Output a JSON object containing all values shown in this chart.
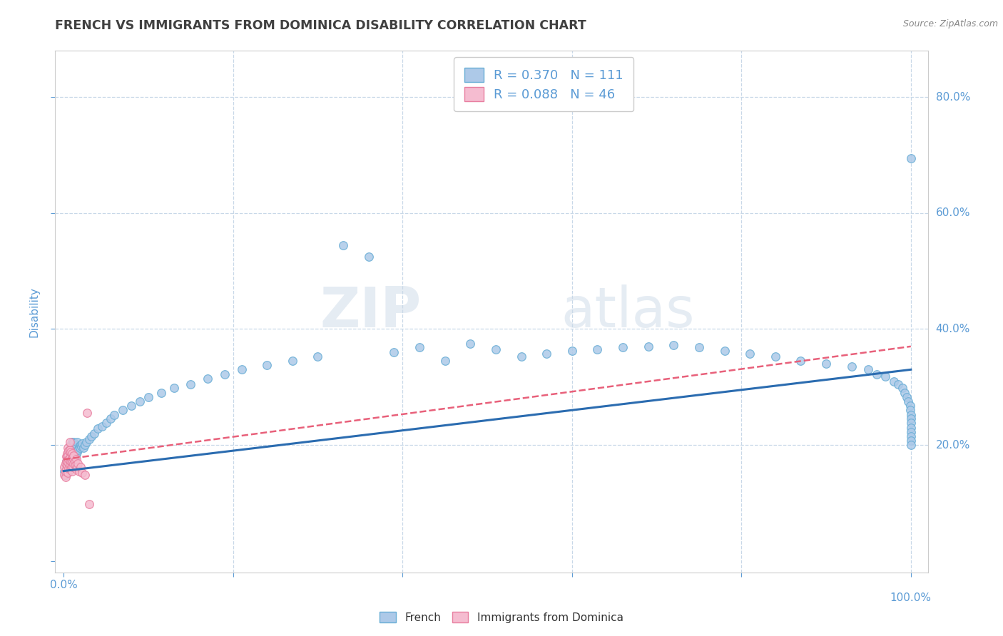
{
  "title": "FRENCH VS IMMIGRANTS FROM DOMINICA DISABILITY CORRELATION CHART",
  "source": "Source: ZipAtlas.com",
  "watermark_zip": "ZIP",
  "watermark_atlas": "atlas",
  "xlabel": "",
  "ylabel": "Disability",
  "xlim": [
    -0.01,
    1.02
  ],
  "ylim": [
    -0.02,
    0.88
  ],
  "xticks": [
    0.0,
    0.2,
    0.4,
    0.6,
    0.8,
    1.0
  ],
  "xticklabels": [
    "0.0%",
    "",
    "",
    "",
    "",
    ""
  ],
  "yticks": [
    0.0,
    0.2,
    0.4,
    0.6,
    0.8
  ],
  "yticklabels": [
    "",
    "",
    "",
    "",
    ""
  ],
  "right_ytick_labels": [
    "80.0%",
    "60.0%",
    "40.0%",
    "20.0%"
  ],
  "right_ytick_positions": [
    0.8,
    0.6,
    0.4,
    0.2
  ],
  "bottom_xtick_extra": "100.0%",
  "french_color": "#adc9e8",
  "dominica_color": "#f5bcd0",
  "french_edge": "#6aaed6",
  "dominica_edge": "#e87fa0",
  "trend_french_color": "#2b6cb0",
  "trend_dominica_color": "#e8607a",
  "R_french": 0.37,
  "N_french": 111,
  "R_dominica": 0.088,
  "N_dominica": 46,
  "french_x": [
    0.001,
    0.002,
    0.003,
    0.003,
    0.004,
    0.004,
    0.005,
    0.005,
    0.005,
    0.006,
    0.006,
    0.006,
    0.007,
    0.007,
    0.007,
    0.008,
    0.008,
    0.008,
    0.008,
    0.009,
    0.009,
    0.009,
    0.01,
    0.01,
    0.01,
    0.01,
    0.011,
    0.011,
    0.011,
    0.012,
    0.012,
    0.012,
    0.013,
    0.013,
    0.014,
    0.014,
    0.015,
    0.015,
    0.016,
    0.016,
    0.017,
    0.018,
    0.019,
    0.02,
    0.021,
    0.022,
    0.023,
    0.025,
    0.027,
    0.03,
    0.033,
    0.036,
    0.04,
    0.045,
    0.05,
    0.055,
    0.06,
    0.07,
    0.08,
    0.09,
    0.1,
    0.115,
    0.13,
    0.15,
    0.17,
    0.19,
    0.21,
    0.24,
    0.27,
    0.3,
    0.33,
    0.36,
    0.39,
    0.42,
    0.45,
    0.48,
    0.51,
    0.54,
    0.57,
    0.6,
    0.63,
    0.66,
    0.69,
    0.72,
    0.75,
    0.78,
    0.81,
    0.84,
    0.87,
    0.9,
    0.93,
    0.95,
    0.96,
    0.97,
    0.98,
    0.985,
    0.99,
    0.993,
    0.995,
    0.997,
    0.999,
    0.999,
    1.0,
    1.0,
    1.0,
    1.0,
    1.0,
    1.0,
    1.0,
    1.0,
    1.0
  ],
  "french_y": [
    0.155,
    0.148,
    0.172,
    0.16,
    0.165,
    0.178,
    0.158,
    0.168,
    0.182,
    0.155,
    0.17,
    0.185,
    0.162,
    0.175,
    0.19,
    0.158,
    0.172,
    0.188,
    0.2,
    0.165,
    0.178,
    0.195,
    0.16,
    0.175,
    0.192,
    0.205,
    0.168,
    0.182,
    0.198,
    0.172,
    0.188,
    0.205,
    0.175,
    0.192,
    0.18,
    0.198,
    0.185,
    0.2,
    0.188,
    0.205,
    0.192,
    0.198,
    0.195,
    0.2,
    0.198,
    0.202,
    0.195,
    0.2,
    0.205,
    0.21,
    0.215,
    0.22,
    0.228,
    0.232,
    0.238,
    0.245,
    0.252,
    0.26,
    0.268,
    0.275,
    0.282,
    0.29,
    0.298,
    0.305,
    0.315,
    0.322,
    0.33,
    0.338,
    0.345,
    0.352,
    0.545,
    0.525,
    0.36,
    0.368,
    0.345,
    0.375,
    0.365,
    0.352,
    0.358,
    0.362,
    0.365,
    0.368,
    0.37,
    0.372,
    0.368,
    0.362,
    0.358,
    0.352,
    0.345,
    0.34,
    0.335,
    0.33,
    0.322,
    0.318,
    0.31,
    0.305,
    0.298,
    0.29,
    0.282,
    0.275,
    0.268,
    0.26,
    0.252,
    0.245,
    0.238,
    0.23,
    0.222,
    0.215,
    0.695,
    0.208,
    0.2
  ],
  "dominica_x": [
    0.001,
    0.001,
    0.002,
    0.002,
    0.002,
    0.003,
    0.003,
    0.003,
    0.004,
    0.004,
    0.004,
    0.005,
    0.005,
    0.005,
    0.005,
    0.006,
    0.006,
    0.006,
    0.007,
    0.007,
    0.007,
    0.007,
    0.008,
    0.008,
    0.008,
    0.009,
    0.009,
    0.01,
    0.01,
    0.01,
    0.011,
    0.011,
    0.012,
    0.012,
    0.013,
    0.014,
    0.015,
    0.015,
    0.016,
    0.017,
    0.018,
    0.02,
    0.022,
    0.025,
    0.028,
    0.03
  ],
  "dominica_y": [
    0.148,
    0.162,
    0.145,
    0.168,
    0.155,
    0.172,
    0.158,
    0.18,
    0.165,
    0.175,
    0.185,
    0.152,
    0.17,
    0.182,
    0.195,
    0.16,
    0.175,
    0.19,
    0.165,
    0.178,
    0.192,
    0.205,
    0.158,
    0.172,
    0.188,
    0.162,
    0.175,
    0.155,
    0.17,
    0.185,
    0.162,
    0.178,
    0.168,
    0.182,
    0.172,
    0.165,
    0.158,
    0.175,
    0.162,
    0.168,
    0.155,
    0.162,
    0.152,
    0.148,
    0.255,
    0.098
  ],
  "trend_french_x0": 0.0,
  "trend_french_y0": 0.155,
  "trend_french_x1": 1.0,
  "trend_french_y1": 0.33,
  "trend_dom_x0": 0.0,
  "trend_dom_y0": 0.175,
  "trend_dom_x1": 1.0,
  "trend_dom_y1": 0.37,
  "background_color": "#ffffff",
  "grid_color": "#c8d8e8",
  "title_color": "#404040",
  "tick_color": "#5b9bd5"
}
